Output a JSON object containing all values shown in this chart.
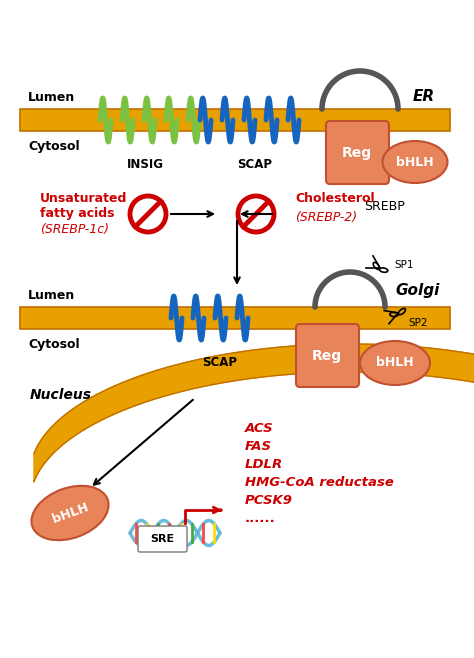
{
  "membrane_color": "#E8A000",
  "membrane_stroke": "#C07000",
  "bg_color": "#FFFFFF",
  "border_color": "#AAAAAA",
  "protein_fill": "#E8845A",
  "protein_stroke": "#C05030",
  "insig_color": "#7BC142",
  "scap_color": "#1565C0",
  "loop_color": "#555555",
  "red_color": "#CC0000",
  "arrow_color": "#111111",
  "lumen_label": "Lumen",
  "cytosol_label": "Cytosol",
  "er_label": "ER",
  "golgi_label": "Golgi",
  "nucleus_label": "Nucleus",
  "insig_label": "INSIG",
  "scap_label": "SCAP",
  "srebp_label": "SREBP",
  "reg_label": "Reg",
  "bhlh_label": "bHLH",
  "sp1_label": "SP1",
  "sp2_label": "SP2",
  "sre_label": "SRE",
  "unsat_line1": "Unsaturated",
  "unsat_line2": "fatty acids",
  "unsat_line3": "(SREBP-1c)",
  "cholesterol_line1": "Cholesterol",
  "cholesterol_line2": "(SREBP-2)",
  "gene_list": [
    "ACS",
    "FAS",
    "LDLR",
    "HMG-CoA reductase",
    "PCSK9",
    "......"
  ]
}
